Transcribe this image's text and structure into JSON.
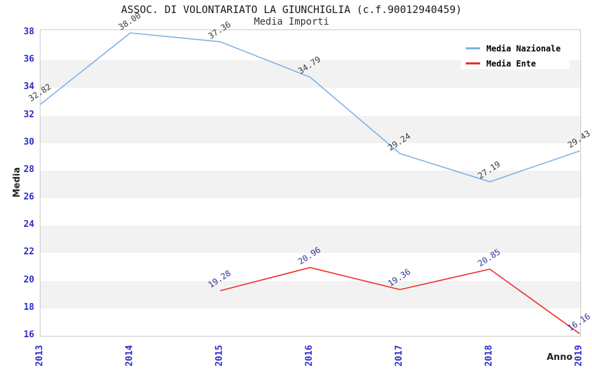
{
  "chart_data": {
    "type": "line",
    "title": "ASSOC. DI VOLONTARIATO LA GIUNCHIGLIA (c.f.90012940459)",
    "subtitle": "Media Importi",
    "xlabel": "Anno",
    "ylabel": "Media",
    "x": [
      "2013",
      "2014",
      "2015",
      "2016",
      "2017",
      "2018",
      "2019"
    ],
    "series": [
      {
        "name": "Media Nazionale",
        "color": "#7db1e8",
        "label_color": "#3a3a3a",
        "values": [
          32.82,
          38.0,
          37.36,
          34.79,
          29.24,
          27.19,
          29.43
        ],
        "labels": [
          "32.82",
          "38.00",
          "37.36",
          "34.79",
          "29.24",
          "27.19",
          "29.43"
        ]
      },
      {
        "name": "Media Ente",
        "color": "#ee2b2b",
        "label_color": "#333399",
        "values": [
          null,
          null,
          19.28,
          20.96,
          19.36,
          20.85,
          16.16
        ],
        "labels": [
          null,
          null,
          "19.28",
          "20.96",
          "19.36",
          "20.85",
          "16.16"
        ]
      }
    ],
    "ylim": [
      16,
      38
    ],
    "ytick_step": 2,
    "grid": "alternating-horizontal-bands",
    "band_colors": [
      "#ffffff",
      "#f2f2f2"
    ],
    "tick_label_color": "#2b2bcc",
    "legend_position": "top-right"
  }
}
